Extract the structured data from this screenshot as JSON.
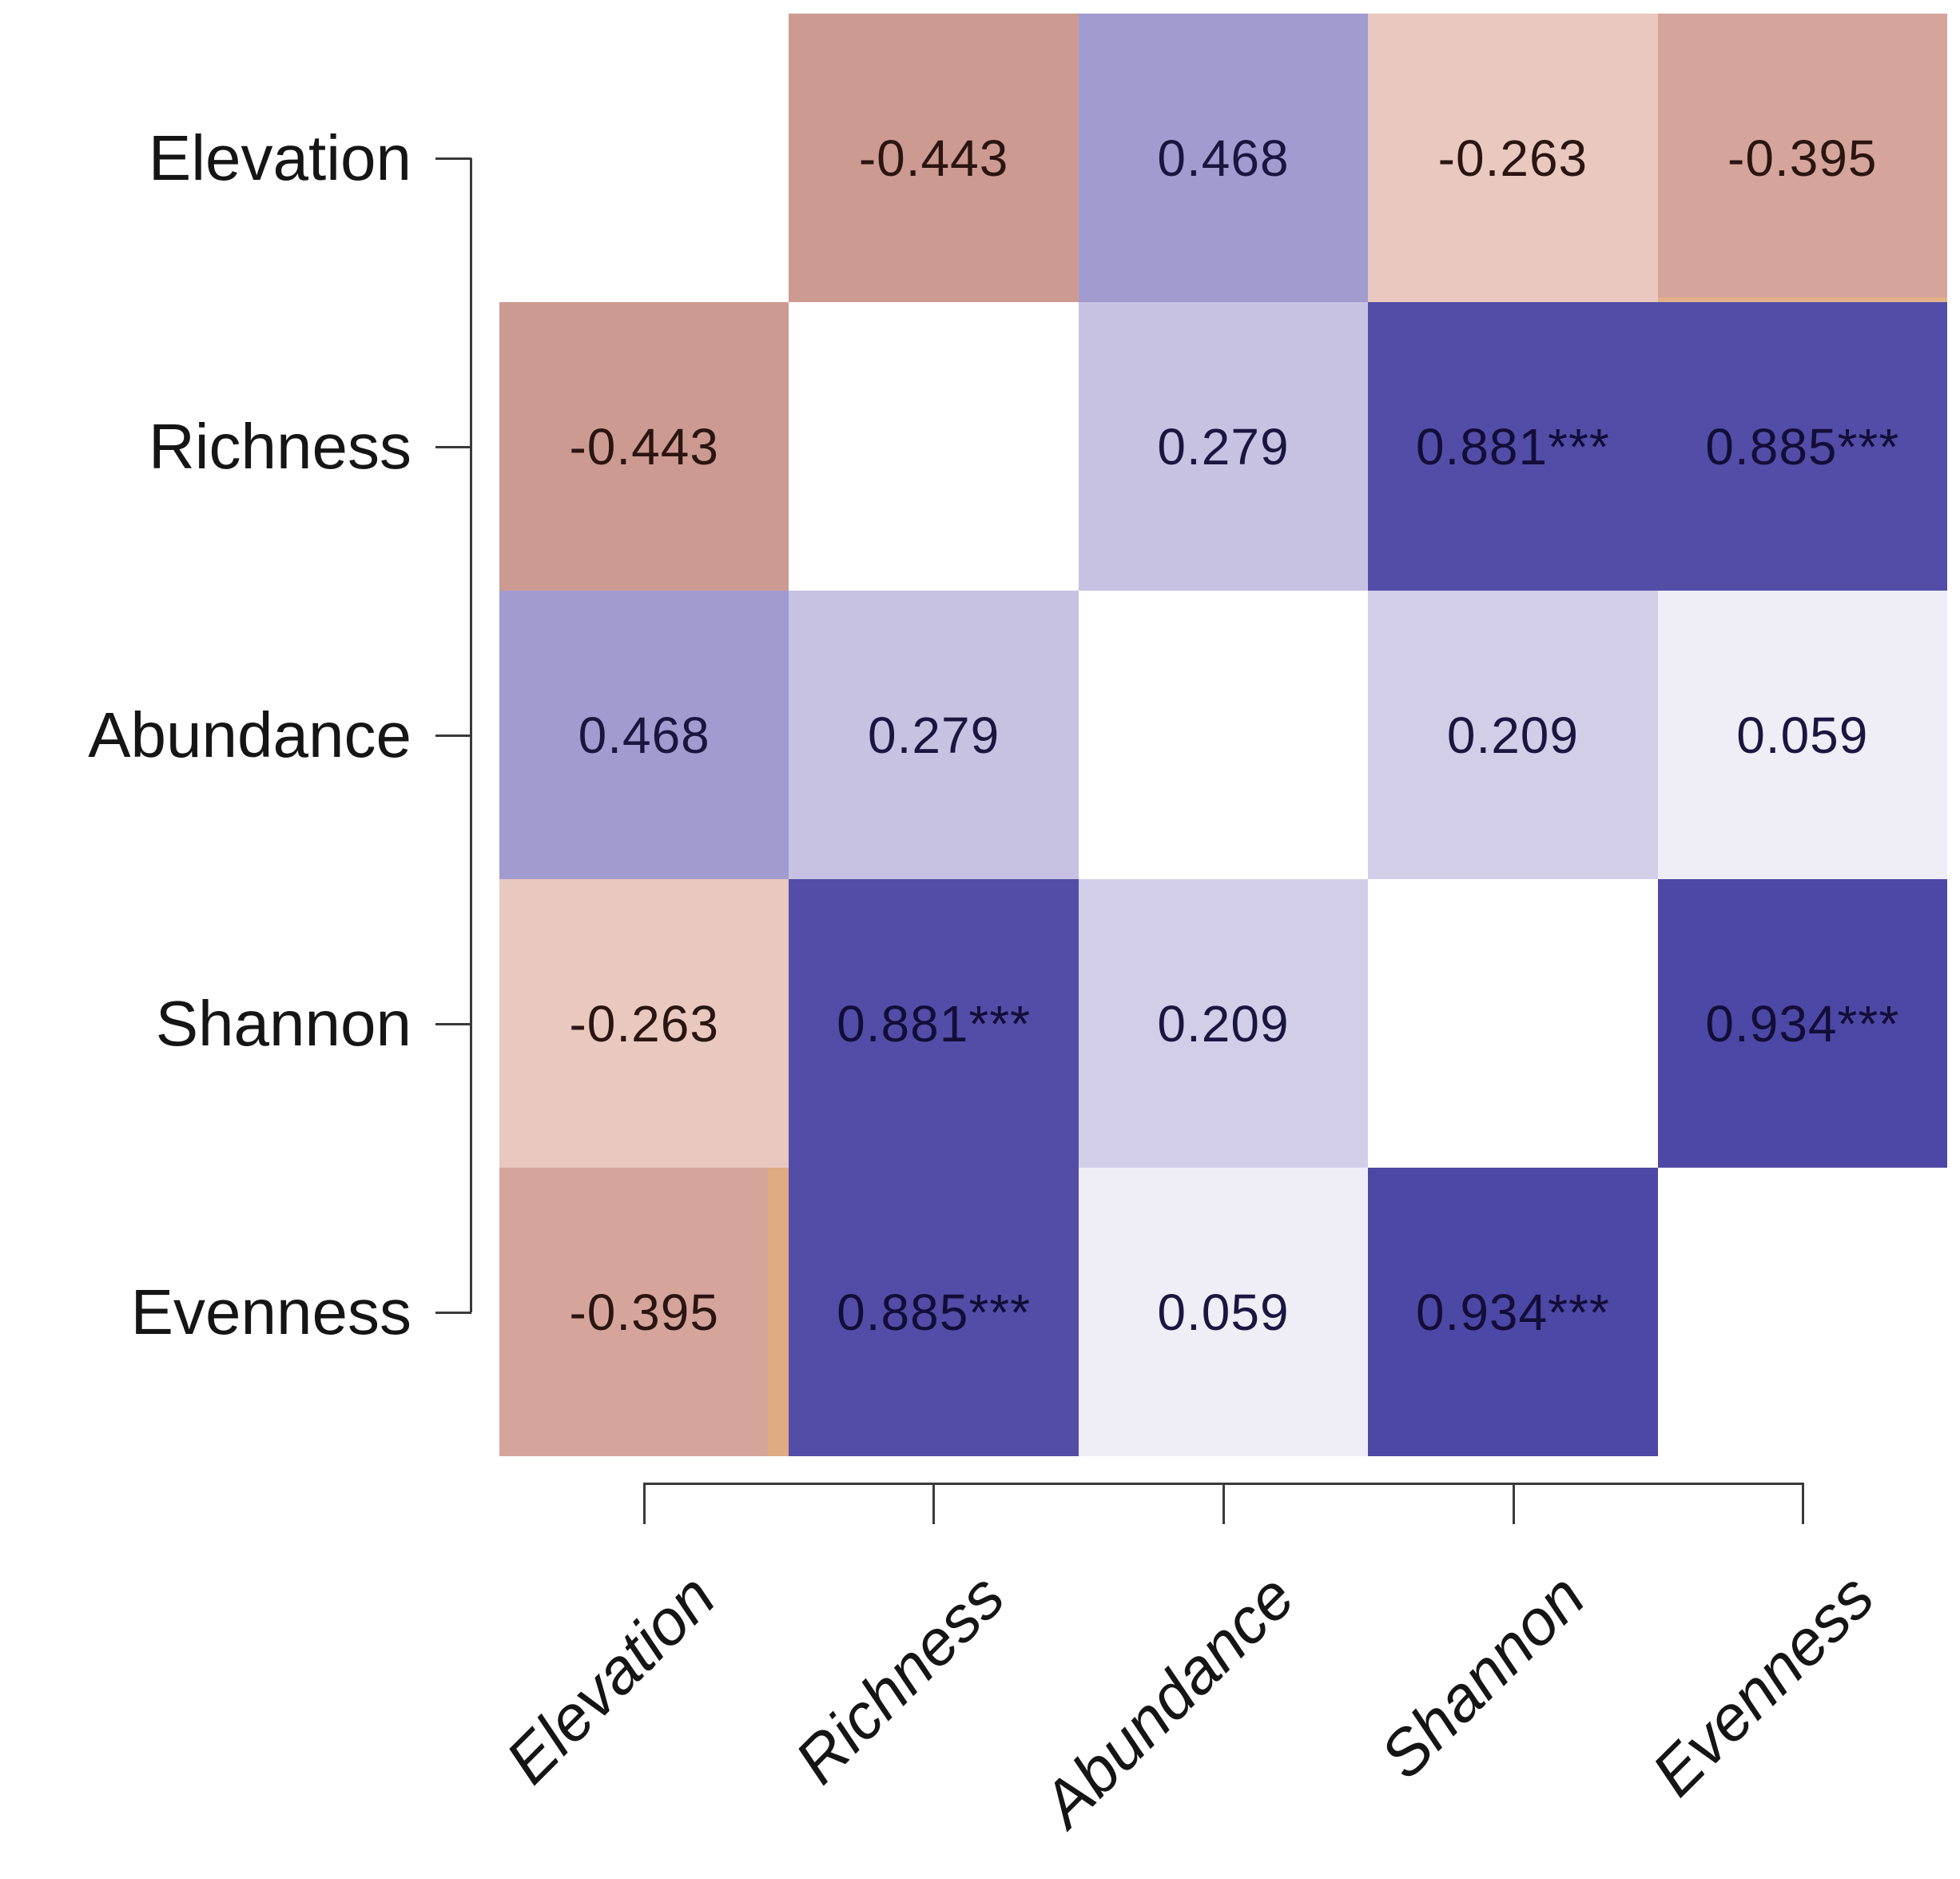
{
  "figure": {
    "kind": "correlation-matrix-heatmap",
    "background": "#ffffff",
    "axis_color": "#3a3a3a",
    "label_color": "#151515"
  },
  "chart_data": {
    "type": "heatmap",
    "title": "",
    "xlabel": "",
    "ylabel": "",
    "legend": "none",
    "grid": "off",
    "value_range": [
      -1,
      1
    ],
    "diagonal": "blank",
    "significance_note": "*** shown on cells 0.881, 0.885, 0.934",
    "variables": [
      "Elevation",
      "Richness",
      "Abundance",
      "Shannon",
      "Evenness"
    ],
    "y_axis_labels": [
      "Elevation",
      "Richness",
      "Abundance",
      "Shannon",
      "Evenness"
    ],
    "x_axis_labels": [
      "Elevation",
      "Richness",
      "Abundance",
      "Shannon",
      "Evenness"
    ],
    "pairs": [
      {
        "a": "Elevation",
        "b": "Richness",
        "value": -0.443,
        "label": "-0.443",
        "stars": "",
        "color": "#cd9a91"
      },
      {
        "a": "Elevation",
        "b": "Abundance",
        "value": 0.468,
        "label": "0.468",
        "stars": "",
        "color": "#a29bcf"
      },
      {
        "a": "Elevation",
        "b": "Shannon",
        "value": -0.263,
        "label": "-0.263",
        "stars": "",
        "color": "#e9c9bf"
      },
      {
        "a": "Elevation",
        "b": "Evenness",
        "value": -0.395,
        "label": "-0.395",
        "stars": "",
        "color": "#d5a59b"
      },
      {
        "a": "Richness",
        "b": "Abundance",
        "value": 0.279,
        "label": "0.279",
        "stars": "",
        "color": "#c7c2e2"
      },
      {
        "a": "Richness",
        "b": "Shannon",
        "value": 0.881,
        "label": "0.881***",
        "stars": "***",
        "color": "#534da8"
      },
      {
        "a": "Richness",
        "b": "Evenness",
        "value": 0.885,
        "label": "0.885***",
        "stars": "***",
        "color": "#534da8"
      },
      {
        "a": "Abundance",
        "b": "Shannon",
        "value": 0.209,
        "label": "0.209",
        "stars": "",
        "color": "#d2cee8"
      },
      {
        "a": "Abundance",
        "b": "Evenness",
        "value": 0.059,
        "label": "0.059",
        "stars": "",
        "color": "#efedf6"
      },
      {
        "a": "Shannon",
        "b": "Evenness",
        "value": 0.934,
        "label": "0.934***",
        "stars": "***",
        "color": "#4d47a5"
      }
    ],
    "edge_artifacts": [
      {
        "row": "Evenness",
        "col": "Elevation",
        "edge": "right",
        "color": "#dfab82"
      },
      {
        "row": "Elevation",
        "col": "Evenness",
        "edge": "bottom",
        "color": "#e2b18a"
      }
    ]
  }
}
